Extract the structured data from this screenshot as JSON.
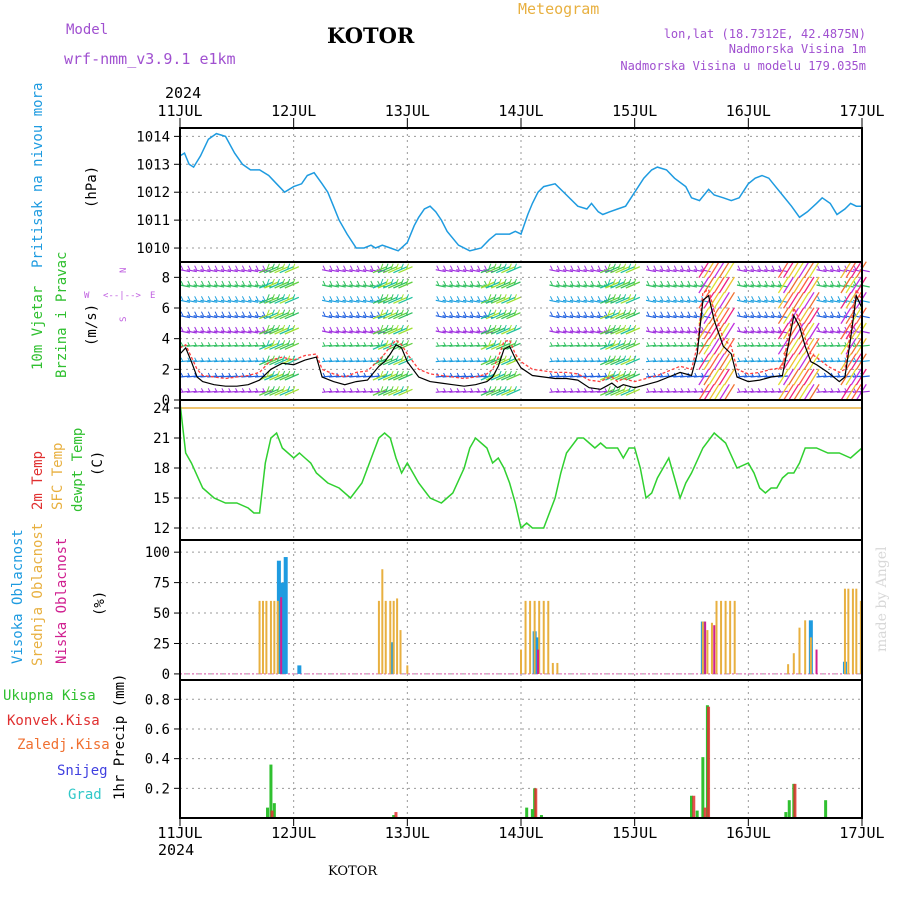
{
  "header": {
    "model_label": "Model",
    "model_value": "wrf-nmm_v3.9.1 e1km",
    "station": "KOTOR",
    "meteogram": "Meteogram",
    "lonlat": "lon,lat (18.7312E, 42.4875N)",
    "elevation": "Nadmorska Visina 1m",
    "model_elevation": "Nadmorska Visina u modelu 179.035m",
    "year_top": "2024",
    "year_bottom": "2024",
    "footer_station": "KOTOR",
    "credit": "made by Angel"
  },
  "colors": {
    "pressure": "#1e9be0",
    "temp2m": "#30d030",
    "sfc": "#e8b040",
    "high_cloud": "#1e9be0",
    "mid_cloud": "#e8b040",
    "low_cloud": "#d02090",
    "total_precip": "#30c030",
    "convective": "#e03030",
    "grid": "#9a9a9a"
  },
  "chart_data": [
    {
      "type": "line",
      "panel": "pressure",
      "ylabel_left": "Pritisak na nivou mora",
      "ylabel_unit": "(hPa)",
      "ylim": [
        1009.5,
        1014.3
      ],
      "yticks": [
        "1010",
        "1011",
        "1012",
        "1013",
        "1014"
      ],
      "x_start": "11JUL",
      "x_end": "17JUL",
      "xtick_labels": [
        "11JUL",
        "12JUL",
        "13JUL",
        "14JUL",
        "15JUL",
        "16JUL",
        "17JUL"
      ],
      "grid": true,
      "series": [
        {
          "x": [
            0.0,
            0.04,
            0.08,
            0.12,
            0.18,
            0.25,
            0.32,
            0.4,
            0.48,
            0.55,
            0.62,
            0.7,
            0.78,
            0.85,
            0.92,
            1.0,
            1.07,
            1.12,
            1.18,
            1.25,
            1.3,
            1.35,
            1.4,
            1.47,
            1.55,
            1.62,
            1.68,
            1.72,
            1.78,
            1.85,
            1.92,
            2.0,
            2.06,
            2.1,
            2.15,
            2.2,
            2.25,
            2.3,
            2.35,
            2.45,
            2.55,
            2.65,
            2.72,
            2.78,
            2.85,
            2.9,
            2.95,
            3.0,
            3.06,
            3.1,
            3.15,
            3.2,
            3.3,
            3.4,
            3.5,
            3.58,
            3.62,
            3.68,
            3.72,
            3.78,
            3.85,
            3.92,
            4.0,
            4.08,
            4.15,
            4.2,
            4.28,
            4.35,
            4.45,
            4.5,
            4.57,
            4.65,
            4.7,
            4.78,
            4.85,
            4.92,
            5.0,
            5.06,
            5.12,
            5.18,
            5.22,
            5.3,
            5.38,
            5.45,
            5.52,
            5.6,
            5.65,
            5.72,
            5.78,
            5.85,
            5.9,
            5.95,
            6.0
          ],
          "values": [
            1013.3,
            1013.4,
            1013.0,
            1012.9,
            1013.3,
            1013.9,
            1014.1,
            1014.0,
            1013.4,
            1013.0,
            1012.8,
            1012.8,
            1012.6,
            1012.3,
            1012.0,
            1012.2,
            1012.3,
            1012.6,
            1012.7,
            1012.3,
            1012.0,
            1011.5,
            1011.0,
            1010.5,
            1010.0,
            1010.0,
            1010.1,
            1010.0,
            1010.1,
            1010.0,
            1009.9,
            1010.2,
            1010.8,
            1011.1,
            1011.4,
            1011.5,
            1011.3,
            1011.0,
            1010.6,
            1010.1,
            1009.9,
            1010.0,
            1010.3,
            1010.5,
            1010.5,
            1010.5,
            1010.6,
            1010.5,
            1011.2,
            1011.6,
            1012.0,
            1012.2,
            1012.3,
            1011.9,
            1011.5,
            1011.4,
            1011.6,
            1011.3,
            1011.2,
            1011.3,
            1011.4,
            1011.5,
            1012.0,
            1012.5,
            1012.8,
            1012.9,
            1012.8,
            1012.5,
            1012.2,
            1011.8,
            1011.7,
            1012.1,
            1011.9,
            1011.8,
            1011.7,
            1011.8,
            1012.3,
            1012.5,
            1012.6,
            1012.5,
            1012.3,
            1011.9,
            1011.5,
            1011.1,
            1011.3,
            1011.6,
            1011.8,
            1011.6,
            1011.2,
            1011.4,
            1011.6,
            1011.5,
            1011.5
          ]
        }
      ]
    },
    {
      "type": "line",
      "panel": "wind",
      "ylabel_left": "10m Vjetar",
      "ylabel_left2": "Brzina i Pravac",
      "ylabel_unit": "(m/s)",
      "compass": "N",
      "compass_w": "W",
      "compass_e": "E",
      "compass_s": "S",
      "compass_ew": "<--|-->",
      "ylim": [
        0,
        9
      ],
      "yticks": [
        "0",
        "2",
        "4",
        "6",
        "8"
      ],
      "grid": true,
      "calm_segments": [
        [
          0.0,
          0.75
        ],
        [
          1.25,
          1.75
        ],
        [
          2.25,
          2.7
        ],
        [
          3.25,
          3.75
        ],
        [
          4.1,
          4.6
        ],
        [
          4.9,
          5.3
        ],
        [
          5.6,
          5.85
        ],
        [
          5.92,
          6.0
        ]
      ],
      "windy_segments": [
        [
          0.75,
          1.0
        ],
        [
          1.75,
          2.0
        ],
        [
          2.7,
          2.95
        ],
        [
          3.75,
          4.0
        ],
        [
          4.6,
          4.85
        ],
        [
          5.3,
          5.58
        ],
        [
          5.85,
          6.0
        ]
      ],
      "series": [
        {
          "name": "speed",
          "x": [
            0.0,
            0.05,
            0.1,
            0.15,
            0.2,
            0.3,
            0.4,
            0.5,
            0.6,
            0.7,
            0.8,
            0.9,
            1.0,
            1.1,
            1.2,
            1.25,
            1.35,
            1.45,
            1.55,
            1.65,
            1.75,
            1.8,
            1.85,
            1.9,
            1.95,
            2.0,
            2.1,
            2.2,
            2.3,
            2.4,
            2.5,
            2.6,
            2.7,
            2.75,
            2.8,
            2.85,
            2.9,
            2.95,
            3.0,
            3.1,
            3.2,
            3.3,
            3.4,
            3.5,
            3.6,
            3.7,
            3.75,
            3.8,
            3.85,
            3.9,
            3.95,
            4.0,
            4.1,
            4.2,
            4.3,
            4.4,
            4.5,
            4.55,
            4.6,
            4.65,
            4.7,
            4.78,
            4.85,
            4.9,
            5.0,
            5.1,
            5.2,
            5.3,
            5.35,
            5.4,
            5.45,
            5.5,
            5.55,
            5.6,
            5.7,
            5.8,
            5.85,
            5.9,
            5.95,
            6.0
          ],
          "values": [
            3.0,
            3.4,
            2.5,
            1.5,
            1.2,
            1.0,
            0.9,
            0.9,
            1.0,
            1.3,
            2.0,
            2.4,
            2.3,
            2.6,
            2.8,
            1.5,
            1.2,
            1.0,
            1.2,
            1.3,
            2.2,
            2.5,
            3.0,
            3.6,
            3.4,
            2.5,
            1.5,
            1.2,
            1.1,
            1.0,
            0.9,
            1.0,
            1.2,
            1.5,
            2.2,
            3.3,
            3.5,
            2.7,
            2.1,
            1.6,
            1.5,
            1.4,
            1.4,
            1.3,
            0.8,
            0.7,
            0.9,
            1.1,
            0.8,
            1.0,
            0.9,
            0.8,
            1.0,
            1.2,
            1.5,
            1.8,
            1.6,
            3.0,
            6.5,
            6.8,
            5.2,
            3.5,
            3.0,
            1.5,
            1.2,
            1.3,
            1.5,
            1.6,
            3.5,
            5.5,
            4.8,
            3.5,
            2.5,
            2.3,
            1.8,
            1.2,
            1.5,
            4.0,
            6.8,
            6.0
          ]
        },
        {
          "name": "gust",
          "x": [
            0.0,
            0.05,
            0.1,
            0.15,
            0.2,
            0.3,
            0.4,
            0.5,
            0.6,
            0.7,
            0.8,
            0.9,
            1.0,
            1.1,
            1.2,
            1.25,
            1.35,
            1.45,
            1.55,
            1.65,
            1.75,
            1.8,
            1.85,
            1.9,
            1.95,
            2.0,
            2.1,
            2.2,
            2.3,
            2.4,
            2.5,
            2.6,
            2.7,
            2.75,
            2.8,
            2.85,
            2.9,
            2.95,
            3.0,
            3.1,
            3.2,
            3.3,
            3.4,
            3.5,
            3.6,
            3.7,
            3.75,
            3.8,
            3.85,
            3.9,
            3.95,
            4.0,
            4.1,
            4.2,
            4.3,
            4.4,
            4.5,
            4.55,
            4.6,
            4.65,
            4.7,
            4.78,
            4.85,
            4.9,
            5.0,
            5.1,
            5.2,
            5.3,
            5.35,
            5.4,
            5.45,
            5.5,
            5.55,
            5.6,
            5.7,
            5.8,
            5.85,
            5.9,
            5.95,
            6.0
          ],
          "values": [
            3.4,
            3.6,
            2.8,
            2.0,
            1.6,
            1.5,
            1.4,
            1.5,
            1.6,
            1.8,
            2.6,
            2.8,
            2.6,
            2.9,
            3.0,
            2.0,
            1.7,
            1.5,
            1.8,
            1.9,
            2.6,
            3.0,
            3.5,
            3.9,
            3.6,
            3.0,
            2.0,
            1.7,
            1.6,
            1.5,
            1.4,
            1.5,
            1.7,
            2.0,
            2.8,
            3.8,
            3.9,
            3.0,
            2.5,
            2.0,
            1.9,
            1.8,
            1.8,
            1.7,
            1.3,
            1.2,
            1.4,
            1.5,
            1.2,
            1.4,
            1.3,
            1.2,
            1.4,
            1.6,
            1.9,
            2.2,
            2.0,
            3.5,
            7.0,
            7.2,
            5.8,
            4.0,
            3.5,
            2.0,
            1.7,
            1.8,
            2.0,
            2.1,
            4.0,
            6.0,
            5.2,
            4.0,
            3.0,
            2.8,
            2.2,
            1.8,
            2.0,
            4.5,
            7.2,
            6.5
          ]
        }
      ]
    },
    {
      "type": "line",
      "panel": "temperature",
      "ylabel_left": "2m Temp",
      "ylabel_left2": "SFC Temp",
      "ylabel_left3": "dewpt Temp",
      "ylabel_unit": "(C)",
      "ylim": [
        10.8,
        24.8
      ],
      "yticks": [
        "12",
        "15",
        "18",
        "21",
        "24"
      ],
      "grid": true,
      "series": [
        {
          "name": "sfc",
          "x": [
            0.0,
            6.0
          ],
          "values": [
            24.0,
            24.0
          ]
        },
        {
          "name": "2m",
          "x": [
            0.0,
            0.05,
            0.1,
            0.2,
            0.3,
            0.4,
            0.5,
            0.6,
            0.65,
            0.7,
            0.75,
            0.8,
            0.85,
            0.9,
            1.0,
            1.05,
            1.1,
            1.15,
            1.2,
            1.3,
            1.4,
            1.5,
            1.6,
            1.7,
            1.75,
            1.8,
            1.85,
            1.9,
            1.95,
            2.0,
            2.05,
            2.1,
            2.2,
            2.3,
            2.4,
            2.5,
            2.55,
            2.6,
            2.7,
            2.75,
            2.8,
            2.85,
            2.9,
            2.95,
            3.0,
            3.05,
            3.1,
            3.2,
            3.3,
            3.35,
            3.4,
            3.5,
            3.55,
            3.6,
            3.65,
            3.7,
            3.75,
            3.8,
            3.85,
            3.9,
            3.95,
            4.0,
            4.05,
            4.1,
            4.15,
            4.2,
            4.25,
            4.3,
            4.35,
            4.4,
            4.45,
            4.5,
            4.6,
            4.7,
            4.8,
            4.9,
            5.0,
            5.05,
            5.1,
            5.15,
            5.2,
            5.25,
            5.3,
            5.35,
            5.4,
            5.45,
            5.5,
            5.6,
            5.7,
            5.8,
            5.9,
            6.0
          ],
          "values": [
            24.5,
            19.5,
            18.5,
            16.0,
            15.0,
            14.5,
            14.5,
            14.0,
            13.5,
            13.5,
            18.5,
            21.0,
            21.5,
            20.0,
            19.0,
            19.5,
            19.0,
            18.5,
            17.5,
            16.5,
            16.0,
            15.0,
            16.5,
            19.5,
            21.0,
            21.5,
            21.0,
            19.0,
            17.5,
            18.5,
            17.5,
            16.5,
            15.0,
            14.5,
            15.5,
            18.0,
            20.0,
            21.0,
            20.0,
            18.5,
            19.0,
            18.0,
            16.5,
            14.5,
            12.0,
            12.5,
            12.0,
            12.0,
            15.0,
            17.5,
            19.5,
            21.0,
            21.0,
            20.5,
            20.0,
            20.5,
            20.0,
            20.0,
            20.0,
            19.0,
            20.0,
            20.0,
            18.0,
            15.0,
            15.5,
            17.0,
            18.0,
            19.0,
            17.0,
            15.0,
            16.5,
            17.5,
            20.0,
            21.5,
            20.5,
            18.0,
            18.5,
            17.5,
            16.0,
            15.5,
            16.0,
            16.0,
            17.0,
            17.5,
            17.5,
            18.5,
            20.0,
            20.0,
            19.5,
            19.5,
            19.0,
            20.0
          ]
        }
      ]
    },
    {
      "type": "bar",
      "panel": "cloud",
      "ylabel_left": "Visoka Oblacnost",
      "ylabel_left2": "Srednja Oblacnost",
      "ylabel_left3": "Niska Oblacnost",
      "ylabel_unit": "(%)",
      "ylim": [
        -5,
        110
      ],
      "yticks": [
        "0",
        "25",
        "50",
        "75",
        "100"
      ],
      "grid": true,
      "series": [
        {
          "name": "high",
          "x": [
            0.87,
            0.9,
            0.93,
            1.05,
            1.87,
            3.12,
            3.14,
            4.6,
            5.85,
            6.0,
            5.55
          ],
          "values": [
            93,
            75,
            96,
            7,
            26,
            35,
            30,
            43,
            10,
            0,
            44
          ]
        },
        {
          "name": "mid",
          "x": [
            0.7,
            0.73,
            0.76,
            0.8,
            0.83,
            0.86,
            1.75,
            1.78,
            1.81,
            1.85,
            1.88,
            1.91,
            1.94,
            2.0,
            3.0,
            3.04,
            3.08,
            3.12,
            3.16,
            3.2,
            3.24,
            3.28,
            3.32,
            4.6,
            4.64,
            4.68,
            4.72,
            4.76,
            4.8,
            4.84,
            4.88,
            5.05,
            5.85,
            5.88,
            5.92,
            5.95,
            5.99,
            5.35,
            5.4,
            5.45,
            5.5,
            5.55
          ],
          "values": [
            60,
            60,
            60,
            60,
            60,
            60,
            60,
            86,
            60,
            60,
            60,
            62,
            36,
            7,
            20,
            60,
            60,
            60,
            60,
            60,
            60,
            9,
            9,
            43,
            36,
            42,
            60,
            60,
            60,
            60,
            60,
            0,
            70,
            70,
            70,
            70,
            60,
            8,
            17,
            38,
            44,
            30
          ]
        },
        {
          "name": "low",
          "x": [
            0.89,
            3.15,
            4.62,
            4.7,
            5.6
          ],
          "values": [
            63,
            20,
            43,
            40,
            20
          ]
        }
      ]
    },
    {
      "type": "bar",
      "panel": "precip",
      "ylabel_left": "Ukupna Kisa",
      "ylabel_left2": "Konvek.Kisa",
      "ylabel_left3": "Zaledj.Kisa",
      "ylabel_left4": "Snijeg",
      "ylabel_left5": "Grad",
      "ylabel_unit": "1hr Precip (mm)",
      "ylim": [
        0,
        0.93
      ],
      "yticks": [
        "0.2",
        "0.4",
        "0.6",
        "0.8"
      ],
      "grid": true,
      "series": [
        {
          "name": "total",
          "x": [
            0.77,
            0.8,
            0.83,
            1.88,
            3.05,
            3.1,
            3.12,
            3.18,
            4.5,
            4.55,
            4.6,
            4.64,
            5.33,
            5.36,
            5.4,
            5.68
          ],
          "values": [
            0.07,
            0.36,
            0.1,
            0.02,
            0.07,
            0.06,
            0.2,
            0.02,
            0.15,
            0.05,
            0.41,
            0.76,
            0.04,
            0.12,
            0.23,
            0.12
          ]
        },
        {
          "name": "convective",
          "x": [
            0.81,
            1.9,
            3.13,
            4.52,
            4.62,
            4.65,
            5.41
          ],
          "values": [
            0.05,
            0.04,
            0.2,
            0.15,
            0.07,
            0.75,
            0.23
          ]
        }
      ]
    }
  ]
}
